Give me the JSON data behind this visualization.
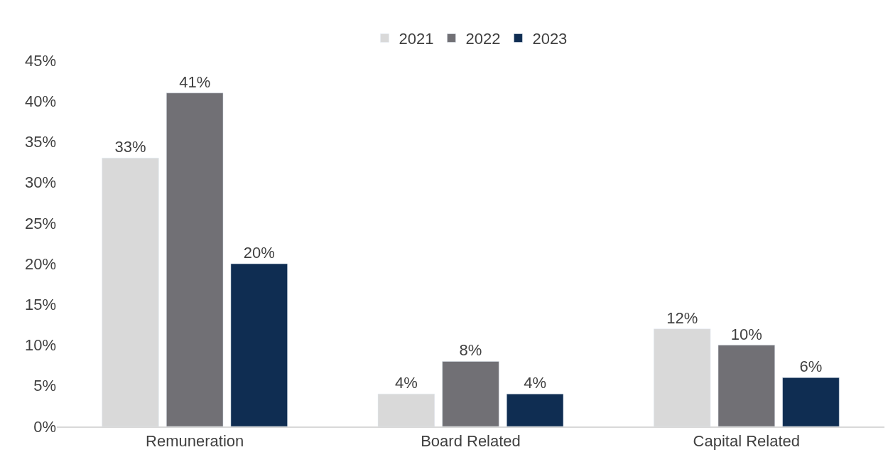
{
  "chart_data": {
    "type": "bar",
    "categories": [
      "Remuneration",
      "Board Related",
      "Capital Related"
    ],
    "series": [
      {
        "name": "2021",
        "color": "#d9d9d9",
        "values": [
          33,
          4,
          12
        ],
        "value_labels": [
          "33%",
          "4%",
          "12%"
        ]
      },
      {
        "name": "2022",
        "color": "#717075",
        "values": [
          41,
          8,
          10
        ],
        "value_labels": [
          "41%",
          "8%",
          "10%"
        ]
      },
      {
        "name": "2023",
        "color": "#0f2d52",
        "values": [
          20,
          4,
          6
        ],
        "value_labels": [
          "20%",
          "4%",
          "6%"
        ]
      }
    ],
    "ylim": [
      0,
      45
    ],
    "yticks": [
      {
        "value": 0,
        "label": "0%"
      },
      {
        "value": 5,
        "label": "5%"
      },
      {
        "value": 10,
        "label": "10%"
      },
      {
        "value": 15,
        "label": "15%"
      },
      {
        "value": 20,
        "label": "20%"
      },
      {
        "value": 25,
        "label": "25%"
      },
      {
        "value": 30,
        "label": "30%"
      },
      {
        "value": 35,
        "label": "35%"
      },
      {
        "value": 40,
        "label": "40%"
      },
      {
        "value": 45,
        "label": "45%"
      }
    ],
    "legend": "top"
  }
}
